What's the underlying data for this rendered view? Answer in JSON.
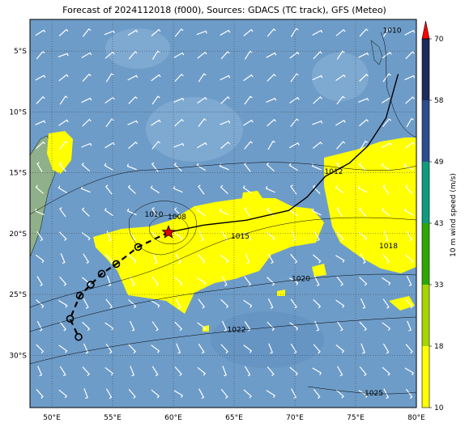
{
  "title": "Forecast of 2024112018 (f000), Sources: GDACS (TC track), GFS (Meteo)",
  "map": {
    "lon_range": [
      48.2,
      80
    ],
    "lat_range": [
      -34.3,
      -2.4
    ],
    "lon_ticks": [
      "50°E",
      "55°E",
      "60°E",
      "65°E",
      "70°E",
      "75°E",
      "80°E"
    ],
    "lat_ticks": [
      "5°S",
      "10°S",
      "15°S",
      "20°S",
      "25°S",
      "30°S"
    ],
    "ocean_color": "#6e9cc8",
    "land_color": "#8fb08a",
    "high_wind_color": "#ffff00"
  },
  "isobars": [
    {
      "label": "1010",
      "lon": 78,
      "lat": -3.5
    },
    {
      "label": "1012",
      "lon": 73.2,
      "lat": -15.1
    },
    {
      "label": "1010",
      "lon": 58.4,
      "lat": -18.6
    },
    {
      "label": "1008",
      "lon": 60.3,
      "lat": -18.8
    },
    {
      "label": "1015",
      "lon": 65.5,
      "lat": -20.4
    },
    {
      "label": "1018",
      "lon": 77.7,
      "lat": -21.2
    },
    {
      "label": "1020",
      "lon": 70.5,
      "lat": -23.9
    },
    {
      "label": "1022",
      "lon": 65.2,
      "lat": -28.1
    },
    {
      "label": "1025",
      "lon": 76.5,
      "lat": -33.3
    }
  ],
  "track": {
    "points": [
      {
        "lon": 59.6,
        "lat": -19.9
      },
      {
        "lon": 57.1,
        "lat": -21.1
      },
      {
        "lon": 55.3,
        "lat": -22.5
      },
      {
        "lon": 54.1,
        "lat": -23.3
      },
      {
        "lon": 53.2,
        "lat": -24.2
      },
      {
        "lon": 52.3,
        "lat": -25.1
      },
      {
        "lon": 51.5,
        "lat": -27.0
      },
      {
        "lon": 52.2,
        "lat": -28.5
      }
    ],
    "history": [
      [
        59.6,
        -19.9
      ],
      [
        62.5,
        -19.3
      ],
      [
        66,
        -18.9
      ],
      [
        69.5,
        -18.1
      ],
      [
        71,
        -17
      ],
      [
        72.5,
        -15.3
      ],
      [
        74.5,
        -14.2
      ],
      [
        76,
        -12.8
      ],
      [
        77.5,
        -10.5
      ],
      [
        78.3,
        -7.6
      ],
      [
        78.5,
        -6.9
      ]
    ]
  },
  "colorbar": {
    "label": "10 m wind speed (m/s)",
    "ticks": [
      "10",
      "18",
      "33",
      "43",
      "49",
      "58",
      "70"
    ],
    "colors": [
      "#ffff00",
      "#a6d500",
      "#2ea800",
      "#0f9b7d",
      "#2a4d8f",
      "#1b2b5a"
    ],
    "extend_color": "#ff0000"
  }
}
